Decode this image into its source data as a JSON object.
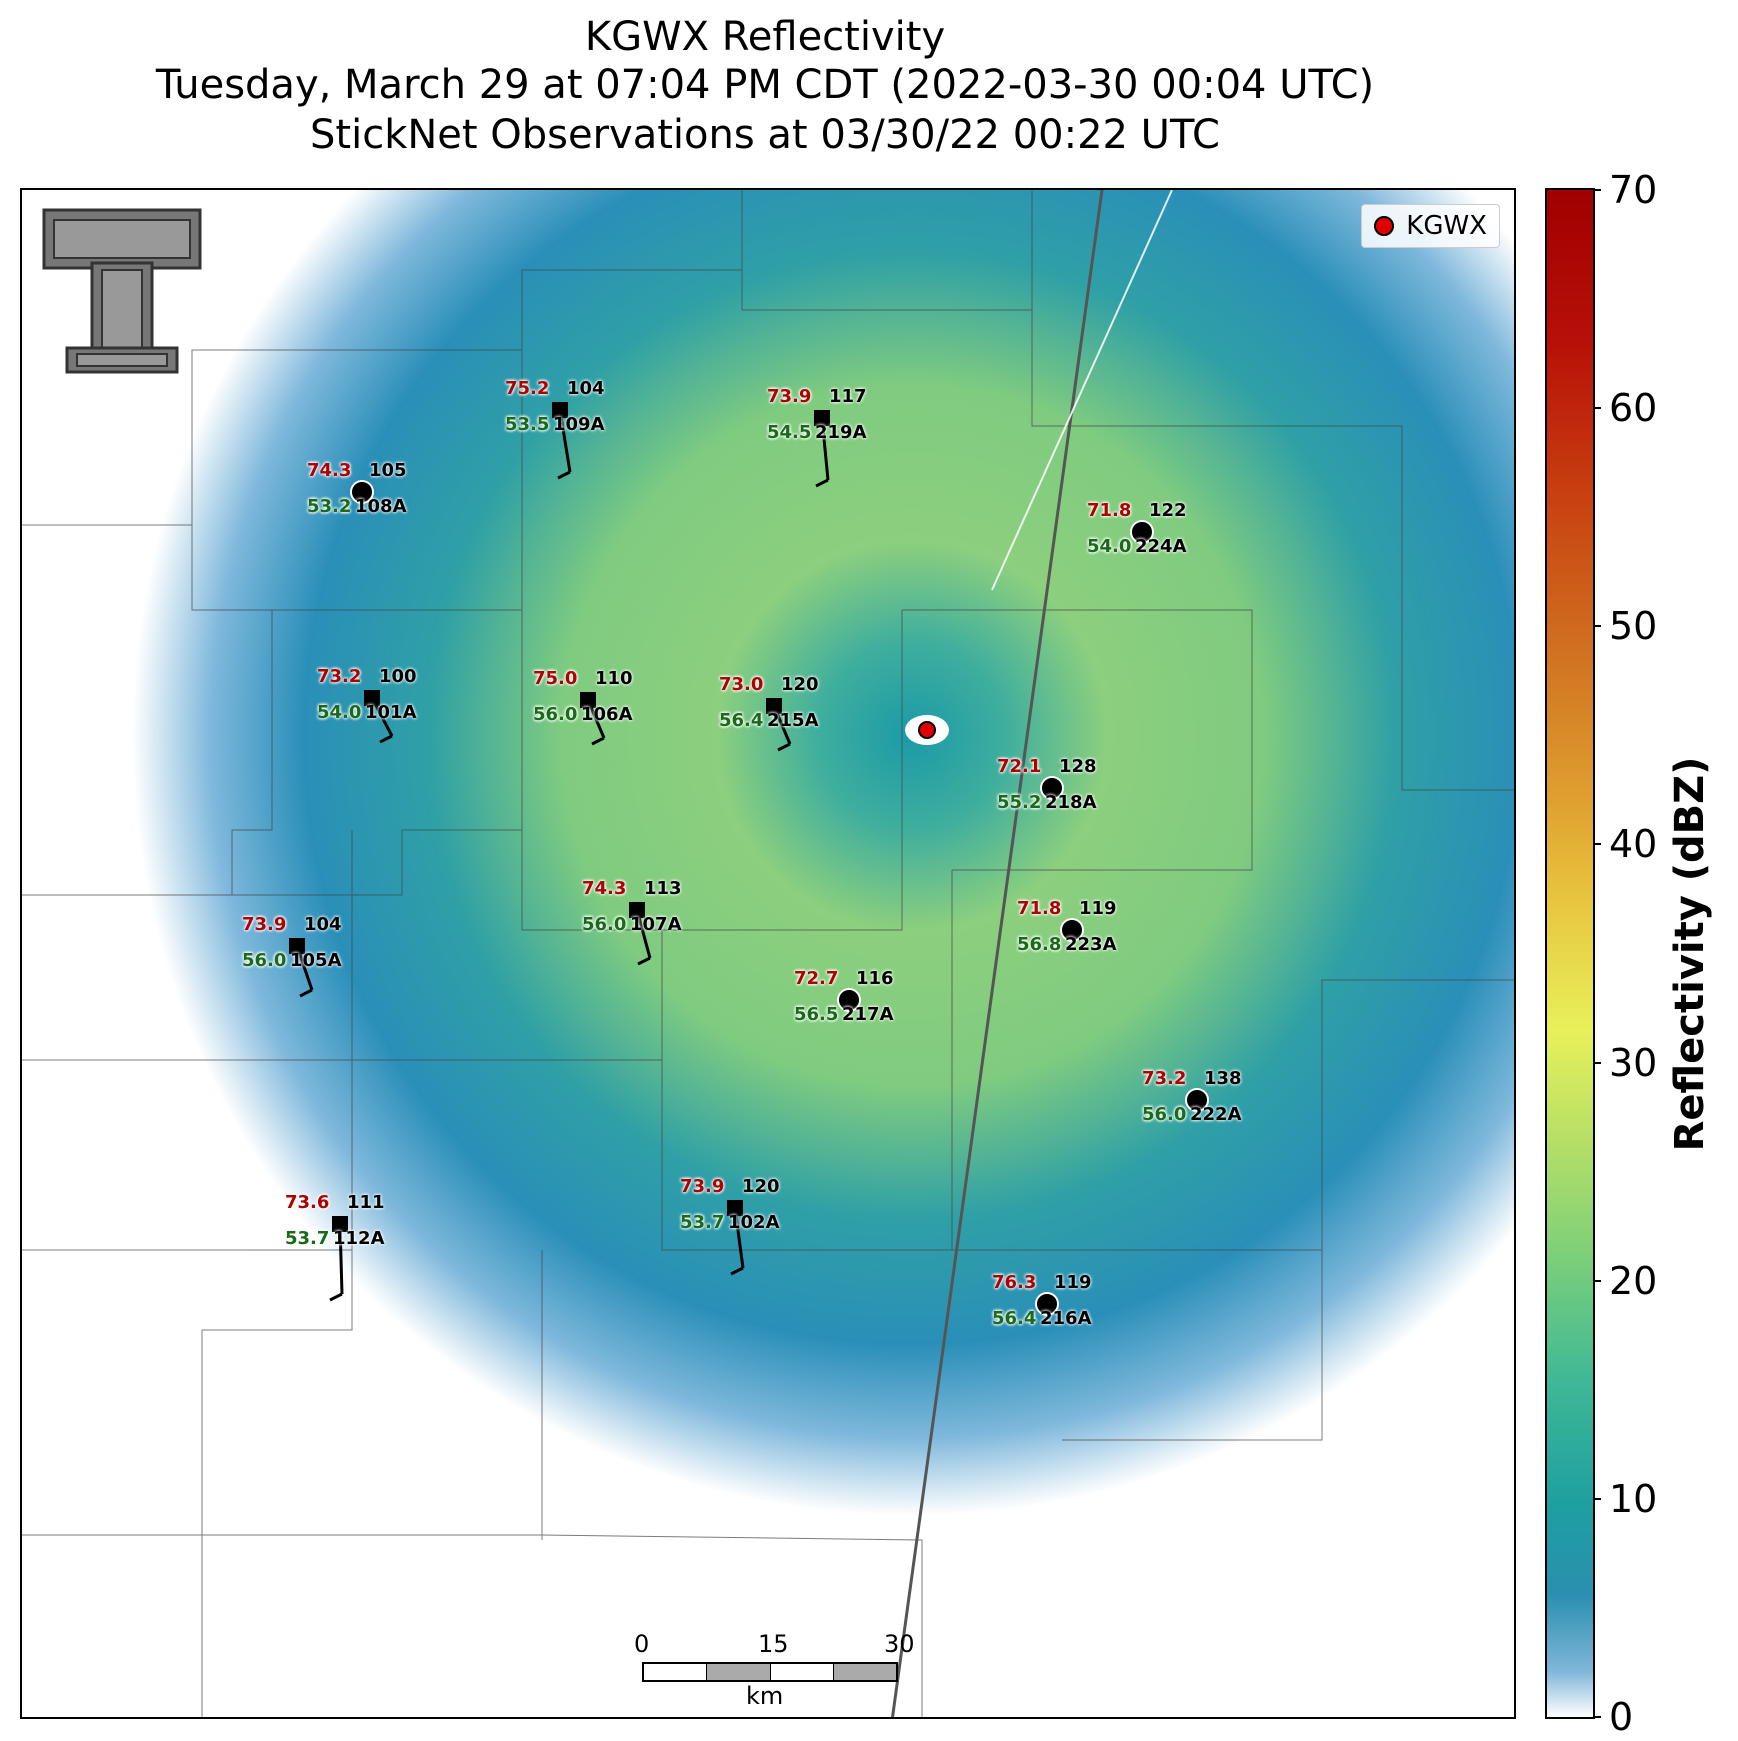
{
  "title": {
    "line1": "KGWX Reflectivity",
    "line2": "Tuesday, March 29 at 07:04 PM CDT (2022-03-30 00:04 UTC)",
    "line3": "StickNet Observations at 03/30/22 00:22 UTC"
  },
  "legend": {
    "label": "KGWX",
    "color": "#e00000"
  },
  "colorbar": {
    "label": "Reflectivity (dBZ)",
    "ticks": [
      "0",
      "10",
      "20",
      "30",
      "40",
      "50",
      "60",
      "70"
    ],
    "range": [
      0,
      70
    ]
  },
  "scalebar": {
    "ticks": [
      "0",
      "15",
      "30"
    ],
    "unit": "km"
  },
  "logo": "texas-tech-double-t-logo",
  "stations": [
    {
      "temp": "74.3",
      "dew": "53.2",
      "pres": "105",
      "id": "108A",
      "marker": "circle"
    },
    {
      "temp": "75.2",
      "dew": "53.5",
      "pres": "104",
      "id": "109A",
      "marker": "square"
    },
    {
      "temp": "73.9",
      "dew": "54.5",
      "pres": "117",
      "id": "219A",
      "marker": "square"
    },
    {
      "temp": "71.8",
      "dew": "54.0",
      "pres": "122",
      "id": "224A",
      "marker": "circle"
    },
    {
      "temp": "73.2",
      "dew": "54.0",
      "pres": "100",
      "id": "101A",
      "marker": "square"
    },
    {
      "temp": "75.0",
      "dew": "56.0",
      "pres": "110",
      "id": "106A",
      "marker": "square"
    },
    {
      "temp": "73.0",
      "dew": "56.4",
      "pres": "120",
      "id": "215A",
      "marker": "square"
    },
    {
      "temp": "72.1",
      "dew": "55.2",
      "pres": "128",
      "id": "218A",
      "marker": "circle"
    },
    {
      "temp": "71.8",
      "dew": "56.8",
      "pres": "119",
      "id": "223A",
      "marker": "circle"
    },
    {
      "temp": "74.3",
      "dew": "56.0",
      "pres": "113",
      "id": "107A",
      "marker": "square"
    },
    {
      "temp": "73.9",
      "dew": "56.0",
      "pres": "104",
      "id": "105A",
      "marker": "square"
    },
    {
      "temp": "72.7",
      "dew": "56.5",
      "pres": "116",
      "id": "217A",
      "marker": "circle"
    },
    {
      "temp": "73.2",
      "dew": "56.0",
      "pres": "138",
      "id": "222A",
      "marker": "circle"
    },
    {
      "temp": "73.6",
      "dew": "53.7",
      "pres": "111",
      "id": "112A",
      "marker": "square"
    },
    {
      "temp": "73.9",
      "dew": "53.7",
      "pres": "120",
      "id": "102A",
      "marker": "square"
    },
    {
      "temp": "76.3",
      "dew": "56.4",
      "pres": "119",
      "id": "216A",
      "marker": "circle"
    }
  ]
}
